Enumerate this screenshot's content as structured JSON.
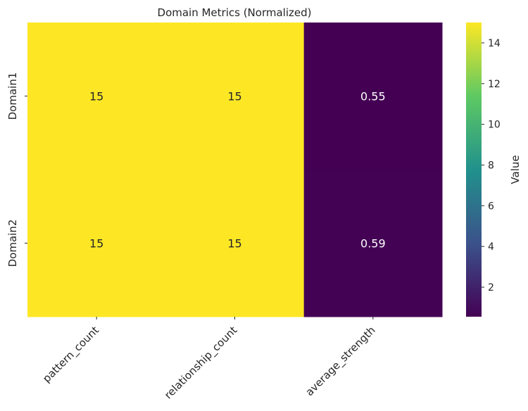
{
  "chart_data": {
    "type": "heatmap",
    "title": "Domain Metrics (Normalized)",
    "xlabel": "",
    "ylabel": "",
    "x_categories": [
      "pattern_count",
      "relationship_count",
      "average_strength"
    ],
    "y_categories": [
      "Domain1",
      "Domain2"
    ],
    "values": [
      [
        15,
        15,
        0.55
      ],
      [
        15,
        15,
        0.59
      ]
    ],
    "cell_labels": [
      [
        "15",
        "15",
        "0.55"
      ],
      [
        "15",
        "15",
        "0.59"
      ]
    ],
    "colormap": "viridis",
    "color_range": [
      0.55,
      15
    ],
    "colorbar": {
      "label": "Value",
      "ticks": [
        2,
        4,
        6,
        8,
        10,
        12,
        14
      ]
    },
    "colors": {
      "viridis_stops": [
        "#440154",
        "#3b528b",
        "#21918c",
        "#5ec962",
        "#fde725"
      ],
      "text_dark": "#262626",
      "text_light": "#ffffff"
    }
  }
}
